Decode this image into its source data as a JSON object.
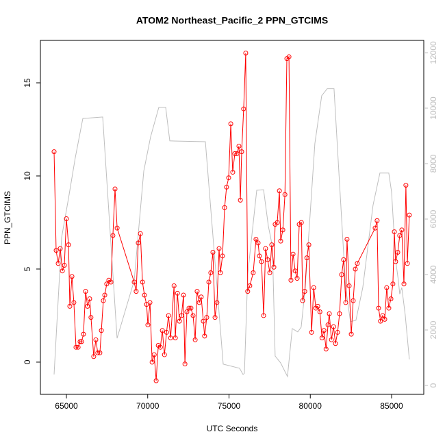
{
  "chart_data": {
    "type": "line",
    "title": "ATOM2 Northeast_Pacific_2 PPN_GTCIMS",
    "x_label": "UTC Seconds",
    "y_label": "PPN_GTCIMS",
    "xlim": [
      63400,
      86980
    ],
    "xticks": [
      65000,
      70000,
      75000,
      80000,
      85000
    ],
    "ylim": [
      -1.73,
      17.28
    ],
    "yticks": [
      0,
      5,
      10,
      15
    ],
    "y2lim": [
      -321,
      12444
    ],
    "y2ticks": [
      0,
      2000,
      4000,
      6000,
      8000,
      10000,
      12000
    ],
    "series": [
      {
        "color": "#ff0000",
        "marker": "open-circle",
        "x": [
          64242,
          64370,
          64495,
          64620,
          64750,
          64875,
          65000,
          65130,
          65210,
          65340,
          65460,
          65590,
          65720,
          65840,
          65930,
          66050,
          66180,
          66300,
          66430,
          66510,
          66680,
          66810,
          66930,
          67060,
          67150,
          67270,
          67360,
          67480,
          67610,
          67740,
          67860,
          67990,
          68120,
          69170,
          69290,
          69420,
          69550,
          69680,
          69800,
          69930,
          70010,
          70140,
          70270,
          70400,
          70520,
          70650,
          70780,
          70900,
          71030,
          71160,
          71280,
          71410,
          71620,
          71700,
          71830,
          71950,
          72080,
          72200,
          72290,
          72410,
          72540,
          72660,
          72790,
          72920,
          73040,
          73170,
          73290,
          73420,
          73500,
          73630,
          73760,
          73880,
          74010,
          74140,
          74260,
          74390,
          74470,
          74600,
          74730,
          74850,
          74980,
          75110,
          75230,
          75360,
          75490,
          75610,
          75700,
          75780,
          75900,
          76030,
          76150,
          76280,
          76490,
          76660,
          76790,
          76870,
          77000,
          77130,
          77250,
          77380,
          77510,
          77630,
          77760,
          77840,
          77970,
          78100,
          78180,
          78310,
          78440,
          78560,
          78690,
          78810,
          78940,
          79070,
          79190,
          79320,
          79450,
          79530,
          79660,
          79790,
          79910,
          80080,
          80210,
          80340,
          80460,
          80590,
          80720,
          80840,
          80970,
          81090,
          81170,
          81300,
          81430,
          81550,
          81680,
          81800,
          81930,
          82050,
          82180,
          82260,
          82390,
          82520,
          82640,
          82770,
          82890,
          83990,
          84110,
          84200,
          84320,
          84450,
          84580,
          84700,
          84830,
          84960,
          85080,
          85170,
          85250,
          85380,
          85500,
          85630,
          85760,
          85880,
          85970,
          86090
        ],
        "values": [
          11.3,
          6.0,
          5.3,
          6.1,
          4.9,
          5.2,
          7.7,
          6.3,
          3.0,
          4.6,
          3.2,
          0.8,
          0.8,
          1.1,
          1.1,
          1.5,
          3.8,
          3.0,
          3.4,
          2.4,
          0.3,
          1.2,
          0.5,
          0.5,
          1.7,
          3.3,
          3.6,
          4.2,
          4.4,
          4.3,
          6.8,
          9.3,
          7.2,
          4.3,
          3.8,
          6.4,
          6.9,
          4.3,
          3.6,
          3.1,
          2.0,
          3.2,
          0.0,
          0.4,
          -1.0,
          0.9,
          0.8,
          1.7,
          0.4,
          1.6,
          2.5,
          1.3,
          4.1,
          1.3,
          3.7,
          2.2,
          2.5,
          3.6,
          -0.1,
          2.7,
          2.9,
          2.9,
          2.5,
          1.2,
          3.8,
          3.2,
          3.5,
          2.2,
          1.4,
          2.4,
          4.3,
          4.8,
          5.9,
          2.4,
          3.2,
          6.1,
          4.8,
          5.7,
          8.3,
          9.4,
          9.9,
          12.8,
          10.2,
          11.2,
          11.2,
          11.6,
          8.7,
          11.3,
          13.6,
          16.6,
          3.8,
          4.1,
          4.8,
          6.6,
          6.4,
          5.7,
          5.4,
          2.5,
          6.1,
          5.5,
          4.8,
          6.3,
          5.1,
          7.4,
          7.5,
          9.2,
          6.5,
          7.1,
          9.0,
          16.3,
          16.4,
          4.4,
          5.8,
          4.9,
          4.5,
          7.4,
          7.5,
          3.3,
          3.8,
          5.6,
          6.3,
          1.6,
          4.0,
          2.9,
          3.0,
          2.7,
          1.3,
          1.7,
          0.7,
          2.0,
          2.6,
          1.2,
          1.9,
          1.0,
          1.6,
          2.6,
          4.7,
          5.5,
          3.2,
          6.6,
          4.1,
          1.5,
          3.3,
          5.0,
          5.3,
          7.2,
          7.6,
          2.9,
          2.2,
          2.5,
          2.3,
          4.0,
          2.9,
          3.4,
          4.2,
          7.0,
          5.4,
          5.9,
          6.8,
          7.1,
          4.2,
          9.5,
          5.3,
          7.9
        ]
      },
      {
        "color": "#bebebe",
        "axis": "y2",
        "x": [
          64242,
          64705,
          65126,
          65547,
          66010,
          67231,
          68115,
          69168,
          69757,
          70178,
          70683,
          71104,
          71357,
          73546,
          74641,
          75651,
          75862,
          75946,
          76156,
          76704,
          77125,
          77419,
          77672,
          77840,
          78177,
          78598,
          78893,
          79230,
          79440,
          79693,
          79945,
          80282,
          80703,
          81040,
          81461,
          81756,
          82177,
          82471,
          82808,
          83229,
          83861,
          84282,
          84829,
          84997,
          85250,
          85418,
          85503,
          85629,
          85839,
          86092
        ],
        "values": [
          395,
          5335,
          6740,
          8220,
          9630,
          9680,
          1700,
          3780,
          7730,
          8970,
          10030,
          10030,
          8820,
          8790,
          770,
          620,
          395,
          440,
          4030,
          7040,
          7060,
          5760,
          5010,
          1060,
          815,
          320,
          2050,
          1930,
          2100,
          3530,
          5760,
          8720,
          10450,
          10700,
          10700,
          7730,
          3530,
          2300,
          2350,
          3530,
          6500,
          7660,
          7660,
          6990,
          4520,
          3780,
          3290,
          3530,
          2540,
          940
        ]
      }
    ]
  }
}
